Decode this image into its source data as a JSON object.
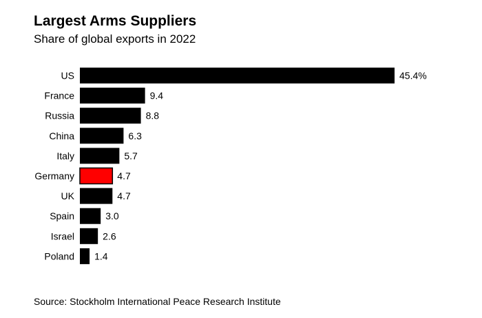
{
  "chart_data": {
    "type": "bar",
    "orientation": "horizontal",
    "title": "Largest Arms Suppliers",
    "subtitle": "Share of global exports in 2022",
    "categories": [
      "US",
      "France",
      "Russia",
      "China",
      "Italy",
      "Germany",
      "UK",
      "Spain",
      "Israel",
      "Poland"
    ],
    "values": [
      45.4,
      9.4,
      8.8,
      6.3,
      5.7,
      4.7,
      4.7,
      3.0,
      2.6,
      1.4
    ],
    "value_labels": [
      "45.4%",
      "9.4",
      "8.8",
      "6.3",
      "5.7",
      "4.7",
      "4.7",
      "3.0",
      "2.6",
      "1.4"
    ],
    "highlight_category": "Germany",
    "colors": {
      "default": "#000000",
      "highlight": "#ff0000"
    },
    "xlabel": "",
    "ylabel": "",
    "xlim": [
      0,
      45.4
    ],
    "grid": false,
    "legend": "none"
  },
  "source": "Source: Stockholm International Peace Research Institute"
}
